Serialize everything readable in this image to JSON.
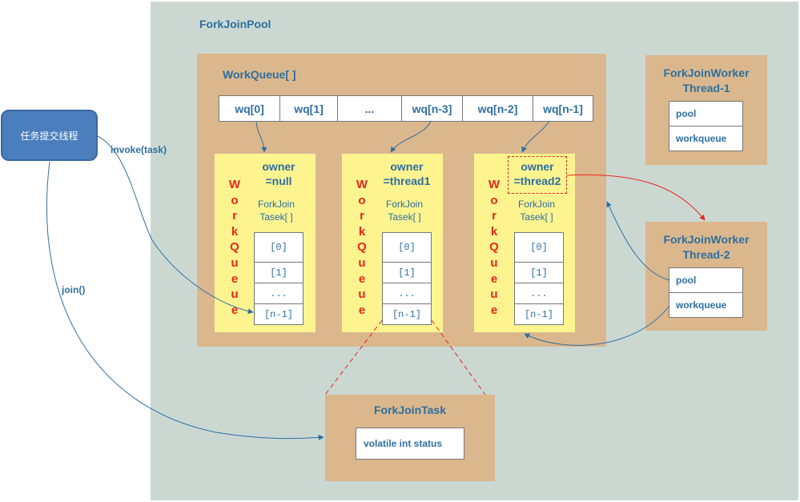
{
  "pool": {
    "title": "ForkJoinPool"
  },
  "workqueue_array": {
    "title": "WorkQueue[ ]",
    "cells": [
      "wq[0]",
      "wq[1]",
      "...",
      "wq[n-3]",
      "wq[n-2]",
      "wq[n-1]"
    ]
  },
  "queues": [
    {
      "vertical_label": "WorkQueue",
      "owner_line1": "owner",
      "owner_line2": "=null",
      "tasks_line1": "ForkJoin",
      "tasks_line2": "Tasek[ ]",
      "slots": [
        "[0]",
        "[1]",
        "...",
        "[n-1]"
      ]
    },
    {
      "vertical_label": "WorkQueue",
      "owner_line1": "owner",
      "owner_line2": "=thread1",
      "tasks_line1": "ForkJoin",
      "tasks_line2": "Tasek[ ]",
      "slots": [
        "[0]",
        "[1]",
        "...",
        "[n-1]"
      ]
    },
    {
      "vertical_label": "WorkQueue",
      "owner_line1": "owner",
      "owner_line2": "=thread2",
      "tasks_line1": "ForkJoin",
      "tasks_line2": "Tasek[ ]",
      "slots": [
        "[0]",
        "[1]",
        "...",
        "[n-1]"
      ]
    }
  ],
  "workers": [
    {
      "title_line1": "ForkJoinWorker",
      "title_line2": "Thread-1",
      "field1": "pool",
      "field2": "workqueue"
    },
    {
      "title_line1": "ForkJoinWorker",
      "title_line2": "Thread-2",
      "field1": "pool",
      "field2": "workqueue"
    }
  ],
  "task": {
    "title": "ForkJoinTask",
    "field": "volatile int status"
  },
  "submitter": {
    "label": "任务提交线程"
  },
  "edges": {
    "invoke": "invoke(task)",
    "join": "join()"
  },
  "colors": {
    "pool_bg": "#cbd8d2",
    "box_bg": "#dbb78d",
    "queue_bg": "#fdf48f",
    "text": "#2e6fa0",
    "red": "#e8261e",
    "submitter": "#4a7ebd"
  }
}
